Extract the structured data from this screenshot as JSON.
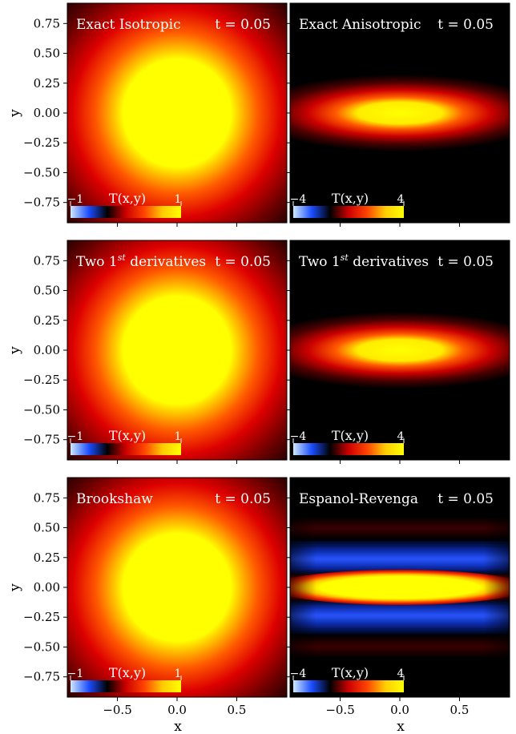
{
  "figure": {
    "xlabel": "x",
    "ylabel": "y"
  },
  "axes": {
    "xlim": [
      -0.92,
      0.92
    ],
    "ylim": [
      -0.92,
      0.92
    ],
    "xticks": [
      -0.5,
      0.0,
      0.5
    ],
    "xtick_labels": [
      "−0.5",
      "0.0",
      "0.5"
    ],
    "yticks": [
      0.75,
      0.5,
      0.25,
      0.0,
      -0.25,
      -0.5,
      -0.75
    ],
    "ytick_labels": [
      "0.75",
      "0.50",
      "0.25",
      "0.00",
      "−0.25",
      "−0.50",
      "−0.75"
    ]
  },
  "colormap": {
    "name": "blue-black-red-yellow",
    "stops": [
      "#cfe8ff",
      "#1a4dff",
      "#000000",
      "#cc0000",
      "#ff4400",
      "#ffcc00",
      "#ffff00"
    ]
  },
  "chart_data": [
    {
      "type": "heatmap",
      "title": "Exact Isotropic",
      "time_label": "t = 0.05",
      "colorbar": {
        "label": "T(x,y)",
        "min_label": "−1",
        "max_label": "1",
        "vmin": -1,
        "vmax": 1
      }
    },
    {
      "type": "heatmap",
      "title": "Exact Anisotropic",
      "time_label": "t = 0.05",
      "colorbar": {
        "label": "T(x,y)",
        "min_label": "−4",
        "max_label": "4",
        "vmin": -4,
        "vmax": 4
      }
    },
    {
      "type": "heatmap",
      "title": "Two 1",
      "title_sup": "st",
      "title_rest": " derivatives",
      "time_label": "t = 0.05",
      "colorbar": {
        "label": "T(x,y)",
        "min_label": "−1",
        "max_label": "1",
        "vmin": -1,
        "vmax": 1
      }
    },
    {
      "type": "heatmap",
      "title": "Two 1",
      "title_sup": "st",
      "title_rest": " derivatives",
      "time_label": "t = 0.05",
      "colorbar": {
        "label": "T(x,y)",
        "min_label": "−4",
        "max_label": "4",
        "vmin": -4,
        "vmax": 4
      }
    },
    {
      "type": "heatmap",
      "title": "Brookshaw",
      "time_label": "t = 0.05",
      "colorbar": {
        "label": "T(x,y)",
        "min_label": "−1",
        "max_label": "1",
        "vmin": -1,
        "vmax": 1
      }
    },
    {
      "type": "heatmap",
      "title": "Espanol-Revenga",
      "time_label": "t = 0.05",
      "colorbar": {
        "label": "T(x,y)",
        "min_label": "−4",
        "max_label": "4",
        "vmin": -4,
        "vmax": 4
      }
    }
  ]
}
